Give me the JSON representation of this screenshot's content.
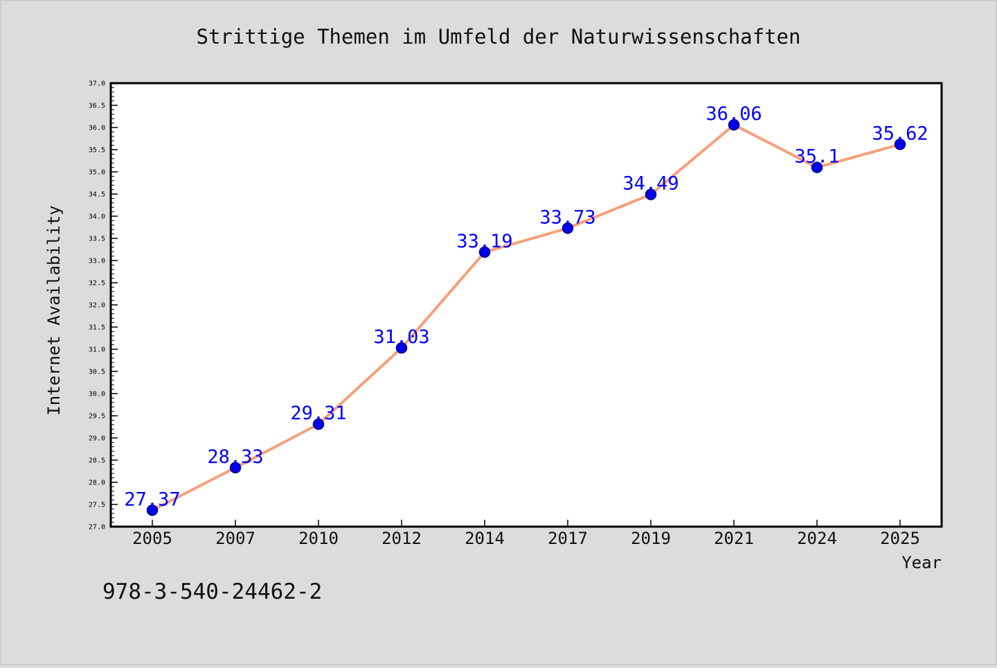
{
  "chart_data": {
    "type": "line",
    "title": "Strittige Themen im Umfeld der Naturwissenschaften",
    "xlabel": "Year",
    "ylabel": "Internet Availability",
    "categories": [
      "2005",
      "2007",
      "2010",
      "2012",
      "2014",
      "2017",
      "2019",
      "2021",
      "2024",
      "2025"
    ],
    "series": [
      {
        "values": [
          27.37,
          28.33,
          29.31,
          31.03,
          33.19,
          33.73,
          34.49,
          36.06,
          35.1,
          35.62
        ],
        "data_labels": [
          "27.37",
          "28.33",
          "29.31",
          "31.03",
          "33.19",
          "33.73",
          "34.49",
          "36.06",
          "35.1",
          "35.62"
        ]
      }
    ],
    "ylim": [
      27.0,
      37.0
    ],
    "y_ticks": [
      "27.0",
      "27.5",
      "28.0",
      "28.5",
      "29.0",
      "29.5",
      "30.0",
      "30.5",
      "31.0",
      "31.5",
      "32.0",
      "32.5",
      "33.0",
      "33.5",
      "34.0",
      "34.5",
      "35.0",
      "35.5",
      "36.0",
      "36.5",
      "37.0"
    ],
    "grid": false,
    "legend": "none",
    "colors": {
      "line": "#f5a07a",
      "marker_fill": "#0000ee",
      "marker_stroke": "#000080",
      "data_label": "#0000ff",
      "background": "#dcdcdc",
      "plot_background": "#ffffff"
    }
  },
  "annotation": {
    "text": "978-3-540-24462-2"
  }
}
